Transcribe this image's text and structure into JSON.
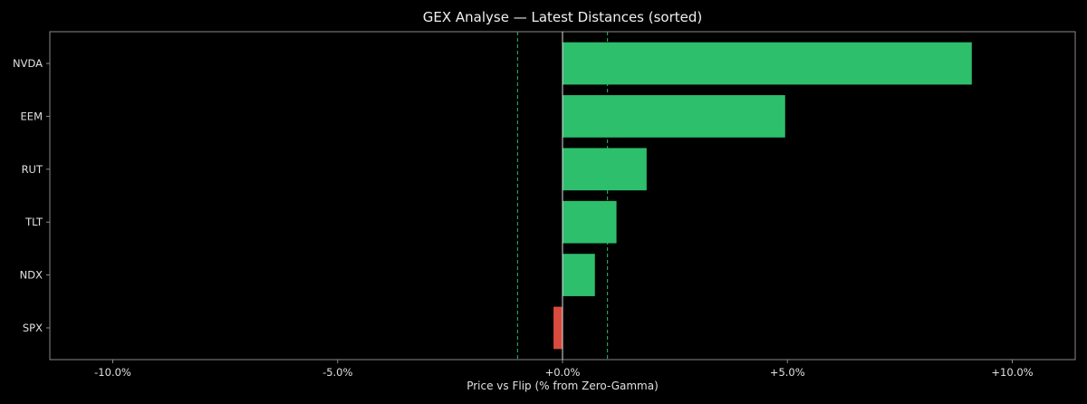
{
  "chart_data": {
    "type": "bar",
    "orientation": "horizontal",
    "title": "GEX Analyse — Latest Distances (sorted)",
    "xlabel": "Price vs Flip (% from Zero-Gamma)",
    "ylabel": "",
    "categories": [
      "NVDA",
      "EEM",
      "RUT",
      "TLT",
      "NDX",
      "SPX"
    ],
    "values": [
      9.1,
      4.95,
      1.87,
      1.2,
      0.72,
      -0.2
    ],
    "xlim": [
      -11.4,
      11.4
    ],
    "xticks": [
      -10,
      -5,
      0,
      5,
      10
    ],
    "xtick_labels": [
      "-10.0%",
      "-5.0%",
      "+0.0%",
      "+5.0%",
      "+10.0%"
    ],
    "reference_lines": [
      {
        "x": -1.0,
        "style": "dashed",
        "color": "#2ebd6b"
      },
      {
        "x": 1.0,
        "style": "dashed",
        "color": "#2ebd6b"
      }
    ],
    "zero_line": true,
    "grid": false,
    "colors": {
      "positive": "#2dbf6c",
      "negative": "#d94b3f",
      "background": "#000000",
      "axis": "#8a8a8a",
      "text": "#e0e0e0"
    }
  }
}
